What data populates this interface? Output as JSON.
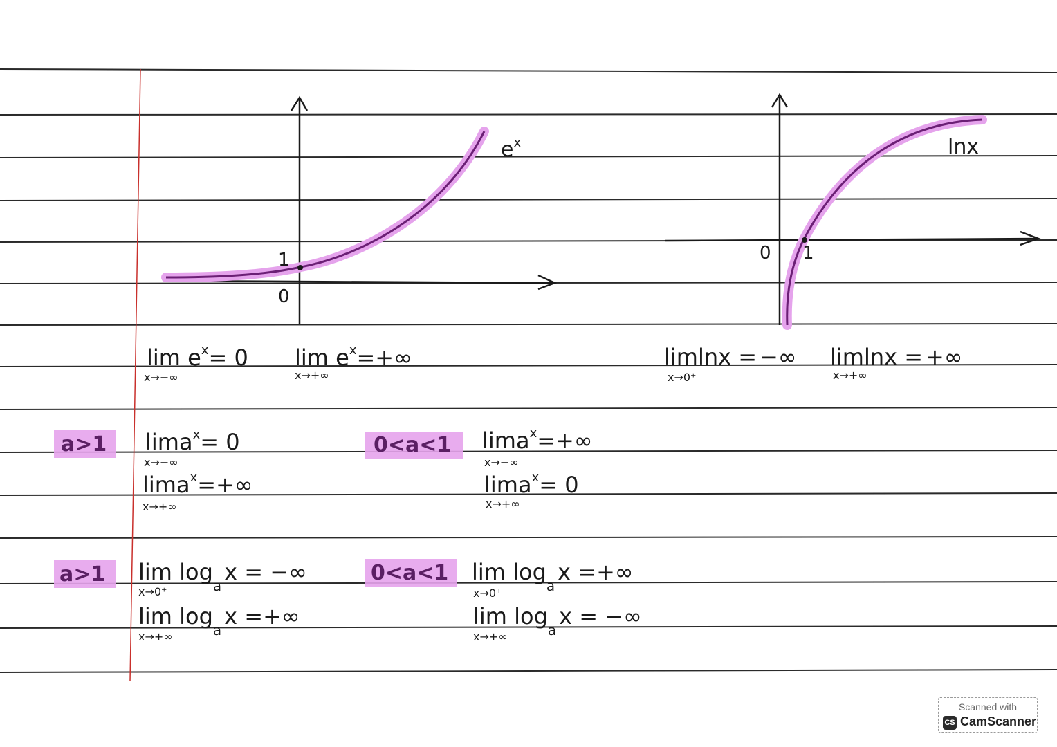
{
  "graph_exp": {
    "curve_label": "e",
    "curve_label_sup": "x",
    "tick_one": "1",
    "origin": "0"
  },
  "graph_ln": {
    "curve_label": "lnx",
    "origin": "0",
    "tick_one": "1"
  },
  "exp_limits": [
    {
      "expr": "lim e",
      "sup": "x",
      "rhs": "= 0",
      "sub": "x→−∞"
    },
    {
      "expr": "lim e",
      "sup": "x",
      "rhs": "=+∞",
      "sub": "x→+∞"
    }
  ],
  "ln_limits": [
    {
      "expr": "limlnx =",
      "rhs": "−∞",
      "sub": "x→0⁺"
    },
    {
      "expr": "limlnx =",
      "rhs": "+∞",
      "sub": "x→+∞"
    }
  ],
  "power_section": {
    "case1": {
      "condition": "a>1",
      "lines": [
        {
          "expr": "lima",
          "sup": "x",
          "rhs": "= 0",
          "sub": "x→−∞"
        },
        {
          "expr": "lima",
          "sup": "x",
          "rhs": "=+∞",
          "sub": "x→+∞"
        }
      ]
    },
    "case2": {
      "condition": "0<a<1",
      "lines": [
        {
          "expr": "lima",
          "sup": "x",
          "rhs": "=+∞",
          "sub": "x→−∞"
        },
        {
          "expr": "lima",
          "sup": "x",
          "rhs": "= 0",
          "sub": "x→+∞"
        }
      ]
    }
  },
  "log_section": {
    "case1": {
      "condition": "a>1",
      "lines": [
        {
          "expr": "lim log",
          "base": "a",
          "rhs": "x = −∞",
          "sub": "x→0⁺"
        },
        {
          "expr": "lim log",
          "base": "a",
          "rhs": "x =+∞",
          "sub": "x→+∞"
        }
      ]
    },
    "case2": {
      "condition": "0<a<1",
      "lines": [
        {
          "expr": "lim log",
          "base": "a",
          "rhs": "x =+∞",
          "sub": "x→0⁺"
        },
        {
          "expr": "lim log",
          "base": "a",
          "rhs": "x = −∞",
          "sub": "x→+∞"
        }
      ]
    }
  },
  "watermark": {
    "scanned_with": "Scanned with",
    "logo": "CS",
    "brand": "CamScanner"
  },
  "colors": {
    "highlight": "#e5a3ec",
    "curve": "#6b1f75",
    "ink": "#1a1a1a",
    "rule": "#2a2a2a",
    "margin": "#c9302c"
  }
}
